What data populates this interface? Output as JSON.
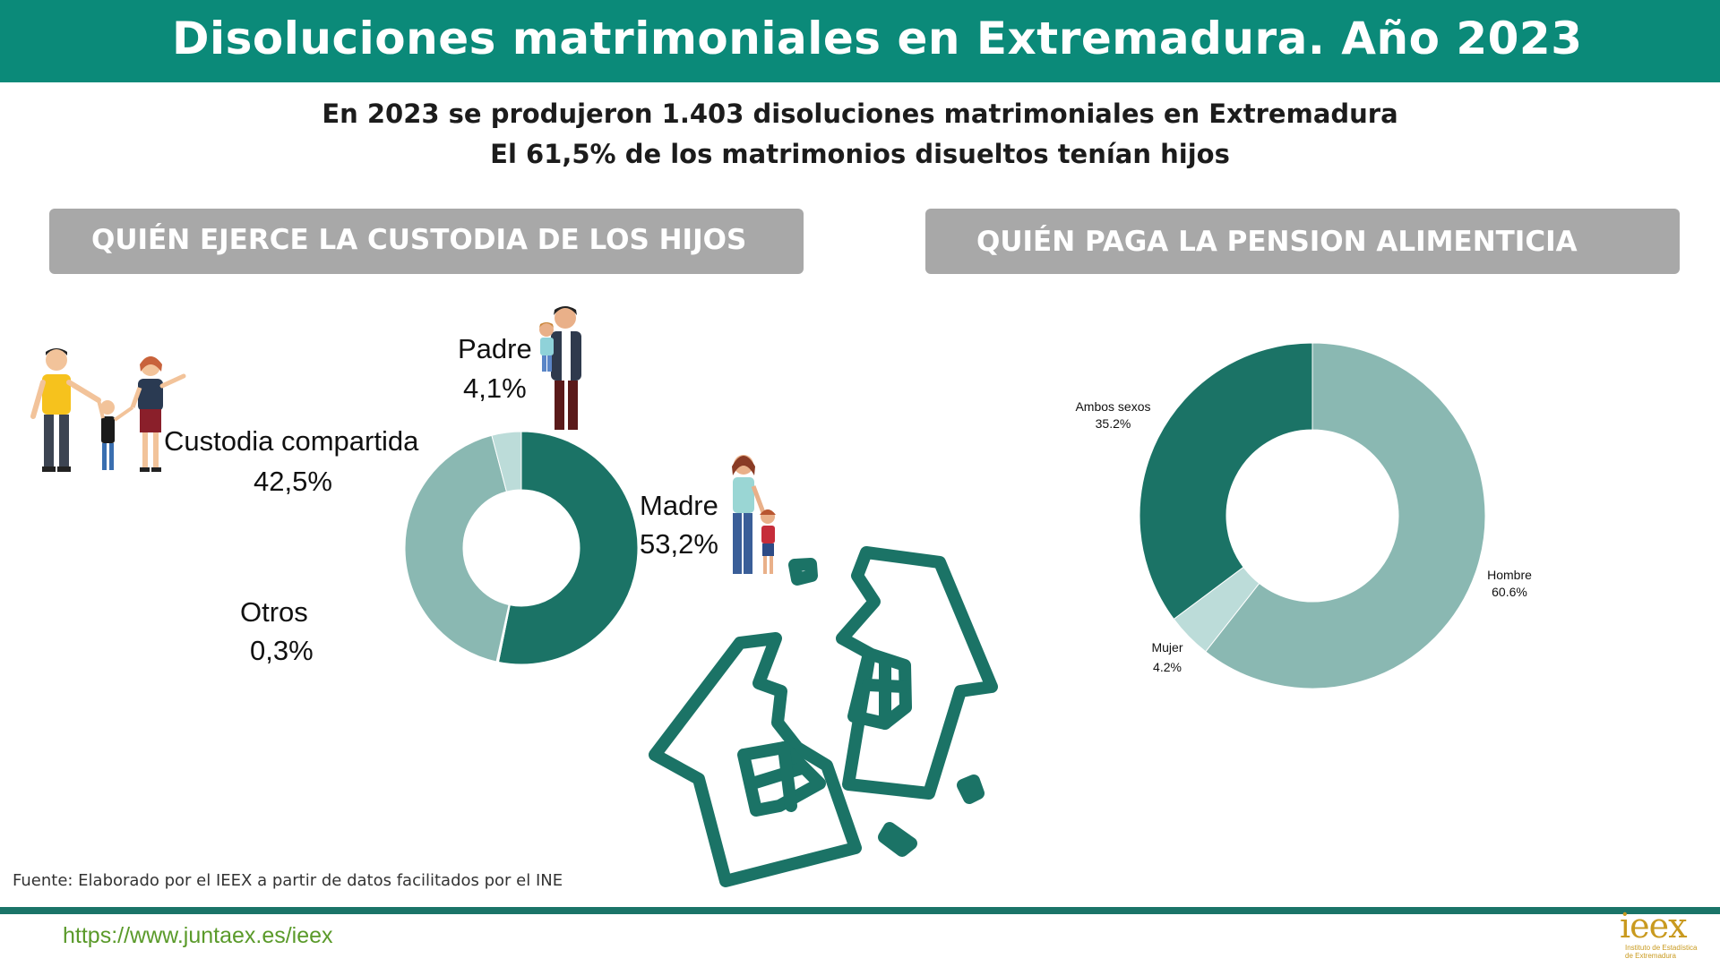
{
  "header": {
    "title": "Disoluciones matrimoniales en Extremadura. Año 2023",
    "line1": "En 2023 se produjeron 1.403 disoluciones matrimoniales en Extremadura",
    "line2": "El 61,5% de los matrimonios disueltos tenían hijos"
  },
  "sections": {
    "custody_title": "QUIÉN EJERCE LA CUSTODIA DE LOS HIJOS",
    "pension_title": "QUIÉN PAGA LA PENSION ALIMENTICIA"
  },
  "custody_labels": {
    "padre": "Padre",
    "padre_pct": "4,1%",
    "madre": "Madre",
    "madre_pct": "53,2%",
    "compartida": "Custodia compartida",
    "compartida_pct": "42,5%",
    "otros": "Otros",
    "otros_pct": "0,3%"
  },
  "pension_labels": {
    "ambos": "Ambos sexos",
    "ambos_pct": "35.2%",
    "hombre": "Hombre",
    "hombre_pct": "60.6%",
    "mujer": "Mujer",
    "mujer_pct": "4.2%"
  },
  "chart_data": [
    {
      "type": "pie",
      "title": "QUIÉN EJERCE LA CUSTODIA DE LOS HIJOS",
      "categories": [
        "Madre",
        "Otros",
        "Custodia compartida",
        "Padre"
      ],
      "values": [
        53.2,
        0.3,
        42.5,
        4.1
      ],
      "colors": [
        "#1b7366",
        "#ffffff",
        "#8ab8b2",
        "#bcdcd9"
      ]
    },
    {
      "type": "pie",
      "title": "QUIÉN PAGA LA PENSION ALIMENTICIA",
      "categories": [
        "Hombre",
        "Mujer",
        "Ambos sexos"
      ],
      "values": [
        60.6,
        4.2,
        35.2
      ],
      "colors": [
        "#8ab8b2",
        "#bcdcd9",
        "#1b7366"
      ]
    }
  ],
  "footer": {
    "source": "Fuente: Elaborado por el IEEX a partir de datos facilitados por el INE",
    "url": "https://www.juntaex.es/ieex",
    "logo": "ieex",
    "logo_sub": "Instituto de Estadística de Extremadura"
  },
  "colors": {
    "title_bar": "#0b8a79",
    "header_box": "#a8a8a8",
    "dark_teal": "#1b7366",
    "mid_teal": "#8ab8b2",
    "light_teal": "#bcdcd9"
  }
}
